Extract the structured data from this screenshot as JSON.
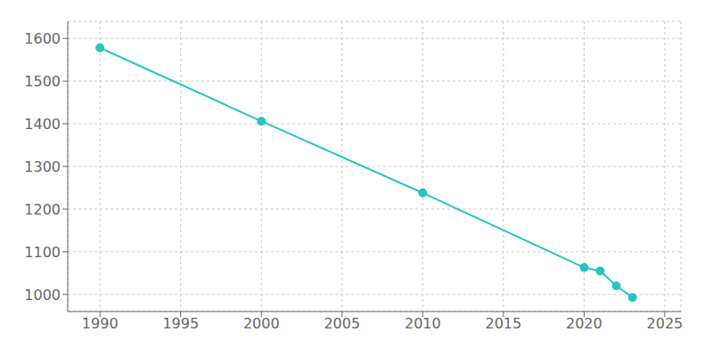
{
  "chart_data": {
    "type": "line",
    "x": [
      1990,
      2000,
      2010,
      2020,
      2021,
      2022,
      2023
    ],
    "values": [
      1578,
      1406,
      1238,
      1063,
      1055,
      1020,
      993
    ],
    "color": "#29c4c4",
    "marker": "circle",
    "xlim": [
      1988,
      2026
    ],
    "ylim": [
      960,
      1640
    ],
    "xticks": [
      1990,
      1995,
      2000,
      2005,
      2010,
      2015,
      2020,
      2025
    ],
    "yticks": [
      1000,
      1100,
      1200,
      1300,
      1400,
      1500,
      1600
    ],
    "grid": true
  }
}
